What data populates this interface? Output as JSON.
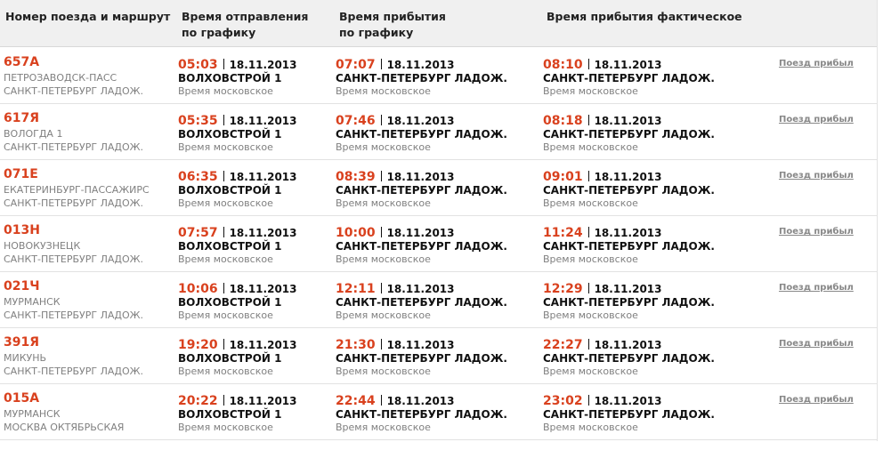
{
  "header": {
    "columns": [
      {
        "lines": [
          "Номер поезда и маршрут"
        ]
      },
      {
        "lines": [
          "Время отправления",
          "по графику"
        ]
      },
      {
        "lines": [
          "Время прибытия",
          "по графику"
        ]
      },
      {
        "lines": [
          "Время прибытия фактическое"
        ]
      }
    ]
  },
  "table": {
    "rows": [
      {
        "train": {
          "number": "657А",
          "from": "ПЕТРОЗАВОДСК-ПАСС",
          "to": "САНКТ-ПЕТЕРБУРГ ЛАДОЖ."
        },
        "departure": {
          "time": "05:03",
          "date": "18.11.2013",
          "station": "ВОЛХОВСТРОЙ 1",
          "note": "Время московское"
        },
        "arrival": {
          "time": "07:07",
          "date": "18.11.2013",
          "station": "САНКТ-ПЕТЕРБУРГ ЛАДОЖ.",
          "note": "Время московское"
        },
        "actual": {
          "time": "08:10",
          "date": "18.11.2013",
          "station": "САНКТ-ПЕТЕРБУРГ ЛАДОЖ.",
          "note": "Время московское"
        },
        "status": "Поезд прибыл"
      },
      {
        "train": {
          "number": "617Я",
          "from": "ВОЛОГДА 1",
          "to": "САНКТ-ПЕТЕРБУРГ ЛАДОЖ."
        },
        "departure": {
          "time": "05:35",
          "date": "18.11.2013",
          "station": "ВОЛХОВСТРОЙ 1",
          "note": "Время московское"
        },
        "arrival": {
          "time": "07:46",
          "date": "18.11.2013",
          "station": "САНКТ-ПЕТЕРБУРГ ЛАДОЖ.",
          "note": "Время московское"
        },
        "actual": {
          "time": "08:18",
          "date": "18.11.2013",
          "station": "САНКТ-ПЕТЕРБУРГ ЛАДОЖ.",
          "note": "Время московское"
        },
        "status": "Поезд прибыл"
      },
      {
        "train": {
          "number": "071Е",
          "from": "ЕКАТЕРИНБУРГ-ПАССАЖИРС",
          "to": "САНКТ-ПЕТЕРБУРГ ЛАДОЖ."
        },
        "departure": {
          "time": "06:35",
          "date": "18.11.2013",
          "station": "ВОЛХОВСТРОЙ 1",
          "note": "Время московское"
        },
        "arrival": {
          "time": "08:39",
          "date": "18.11.2013",
          "station": "САНКТ-ПЕТЕРБУРГ ЛАДОЖ.",
          "note": "Время московское"
        },
        "actual": {
          "time": "09:01",
          "date": "18.11.2013",
          "station": "САНКТ-ПЕТЕРБУРГ ЛАДОЖ.",
          "note": "Время московское"
        },
        "status": "Поезд прибыл"
      },
      {
        "train": {
          "number": "013Н",
          "from": "НОВОКУЗНЕЦК",
          "to": "САНКТ-ПЕТЕРБУРГ ЛАДОЖ."
        },
        "departure": {
          "time": "07:57",
          "date": "18.11.2013",
          "station": "ВОЛХОВСТРОЙ 1",
          "note": "Время московское"
        },
        "arrival": {
          "time": "10:00",
          "date": "18.11.2013",
          "station": "САНКТ-ПЕТЕРБУРГ ЛАДОЖ.",
          "note": "Время московское"
        },
        "actual": {
          "time": "11:24",
          "date": "18.11.2013",
          "station": "САНКТ-ПЕТЕРБУРГ ЛАДОЖ.",
          "note": "Время московское"
        },
        "status": "Поезд прибыл"
      },
      {
        "train": {
          "number": "021Ч",
          "from": "МУРМАНСК",
          "to": "САНКТ-ПЕТЕРБУРГ ЛАДОЖ."
        },
        "departure": {
          "time": "10:06",
          "date": "18.11.2013",
          "station": "ВОЛХОВСТРОЙ 1",
          "note": "Время московское"
        },
        "arrival": {
          "time": "12:11",
          "date": "18.11.2013",
          "station": "САНКТ-ПЕТЕРБУРГ ЛАДОЖ.",
          "note": "Время московское"
        },
        "actual": {
          "time": "12:29",
          "date": "18.11.2013",
          "station": "САНКТ-ПЕТЕРБУРГ ЛАДОЖ.",
          "note": "Время московское"
        },
        "status": "Поезд прибыл"
      },
      {
        "train": {
          "number": "391Я",
          "from": "МИКУНЬ",
          "to": "САНКТ-ПЕТЕРБУРГ ЛАДОЖ."
        },
        "departure": {
          "time": "19:20",
          "date": "18.11.2013",
          "station": "ВОЛХОВСТРОЙ 1",
          "note": "Время московское"
        },
        "arrival": {
          "time": "21:30",
          "date": "18.11.2013",
          "station": "САНКТ-ПЕТЕРБУРГ ЛАДОЖ.",
          "note": "Время московское"
        },
        "actual": {
          "time": "22:27",
          "date": "18.11.2013",
          "station": "САНКТ-ПЕТЕРБУРГ ЛАДОЖ.",
          "note": "Время московское"
        },
        "status": "Поезд прибыл"
      },
      {
        "train": {
          "number": "015А",
          "from": "МУРМАНСК",
          "to": "МОСКВА ОКТЯБРЬСКАЯ"
        },
        "departure": {
          "time": "20:22",
          "date": "18.11.2013",
          "station": "ВОЛХОВСТРОЙ 1",
          "note": "Время московское"
        },
        "arrival": {
          "time": "22:44",
          "date": "18.11.2013",
          "station": "САНКТ-ПЕТЕРБУРГ ЛАДОЖ.",
          "note": "Время московское"
        },
        "actual": {
          "time": "23:02",
          "date": "18.11.2013",
          "station": "САНКТ-ПЕТЕРБУРГ ЛАДОЖ.",
          "note": "Время московское"
        },
        "status": "Поезд прибыл"
      }
    ]
  }
}
